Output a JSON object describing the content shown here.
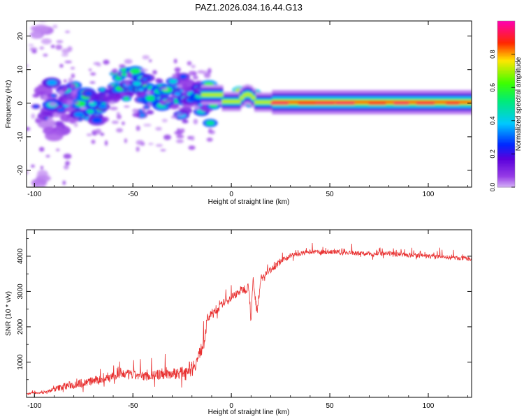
{
  "figure": {
    "title": "PAZ1.2026.034.16.44.G13"
  },
  "chart_data": [
    {
      "type": "heatmap",
      "title": "PAZ1.2026.034.16.44.G13",
      "xlabel": "Height of straight line (km)",
      "ylabel": "Frequency (Hz)",
      "xlim": [
        -104,
        122
      ],
      "ylim": [
        -25,
        24.5
      ],
      "xticks": [
        -100,
        -50,
        0,
        50,
        100
      ],
      "yticks": [
        -20,
        -10,
        0,
        10,
        20
      ],
      "colorbar": {
        "label": "Normalized spectral amplitude",
        "range": [
          0,
          1
        ],
        "ticks": [
          0.0,
          0.2,
          0.4,
          0.6,
          0.8
        ]
      },
      "description_points": [
        {
          "x": -100,
          "y": -24,
          "v": 0.15
        },
        {
          "x": -98,
          "y": 22,
          "v": 0.15
        },
        {
          "x": -95,
          "y": 3,
          "v": 0.35
        },
        {
          "x": -90,
          "y": -6,
          "v": 0.3
        },
        {
          "x": -88,
          "y": 1,
          "v": 0.4
        },
        {
          "x": -83,
          "y": 2,
          "v": 0.45
        },
        {
          "x": -80,
          "y": -1,
          "v": 0.3
        },
        {
          "x": -76,
          "y": 0,
          "v": 0.5
        },
        {
          "x": -72,
          "y": -2,
          "v": 0.45
        },
        {
          "x": -68,
          "y": 2,
          "v": 0.5
        },
        {
          "x": -62,
          "y": 5.5,
          "v": 0.55
        },
        {
          "x": -57,
          "y": 5,
          "v": 0.55
        },
        {
          "x": -52,
          "y": 7,
          "v": 0.55
        },
        {
          "x": -46,
          "y": 5,
          "v": 0.5
        },
        {
          "x": -42,
          "y": 0,
          "v": 0.45
        },
        {
          "x": -37,
          "y": 3,
          "v": 0.5
        },
        {
          "x": -32,
          "y": 3,
          "v": 0.5
        },
        {
          "x": -28,
          "y": -2,
          "v": 0.45
        },
        {
          "x": -24,
          "y": 4,
          "v": 0.4
        },
        {
          "x": -18,
          "y": 3,
          "v": 0.35
        },
        {
          "x": -15,
          "y": -2,
          "v": 0.45
        },
        {
          "x": -12,
          "y": 2.5,
          "v": 0.55
        },
        {
          "x": -5,
          "y": 0.5,
          "v": 0.55
        },
        {
          "x": 5,
          "y": 1,
          "v": 0.65
        },
        {
          "x": 8,
          "y": 2.5,
          "v": 0.75
        },
        {
          "x": 15,
          "y": 0.5,
          "v": 0.8
        },
        {
          "x": 30,
          "y": 0,
          "v": 0.85
        },
        {
          "x": 60,
          "y": 0,
          "v": 0.9
        },
        {
          "x": 90,
          "y": 0,
          "v": 0.92
        },
        {
          "x": 120,
          "y": 0,
          "v": 0.95
        }
      ]
    },
    {
      "type": "line",
      "title": "",
      "xlabel": "Height of straight line (km)",
      "ylabel": "SNR (10 * v/v)",
      "xlim": [
        -104,
        122
      ],
      "ylim": [
        0,
        4750
      ],
      "xticks": [
        -100,
        -50,
        0,
        50,
        100
      ],
      "yticks": [
        1000,
        2000,
        3000,
        4000
      ],
      "series": [
        {
          "name": "SNR",
          "color": "#e83030",
          "x": [
            -104,
            -95,
            -85,
            -75,
            -65,
            -55,
            -45,
            -35,
            -25,
            -18,
            -14,
            -12,
            -8,
            -4,
            0,
            5,
            9,
            10,
            11,
            13,
            15,
            18,
            22,
            26,
            30,
            35,
            40,
            50,
            60,
            70,
            80,
            90,
            100,
            110,
            122
          ],
          "y": [
            100,
            130,
            280,
            380,
            480,
            620,
            560,
            600,
            650,
            900,
            1500,
            2200,
            2400,
            2650,
            2800,
            3000,
            3100,
            2100,
            3300,
            2400,
            3300,
            3500,
            3700,
            3850,
            4000,
            4050,
            4100,
            4100,
            4080,
            4050,
            4050,
            4020,
            3980,
            3950,
            3900
          ],
          "noise": [
            40,
            60,
            220,
            240,
            260,
            280,
            260,
            300,
            340,
            380,
            420,
            300,
            220,
            200,
            220,
            240,
            260,
            200,
            300,
            260,
            220,
            200,
            180,
            160,
            150,
            130,
            130,
            130,
            130,
            130,
            130,
            130,
            130,
            120,
            120
          ]
        }
      ]
    }
  ]
}
